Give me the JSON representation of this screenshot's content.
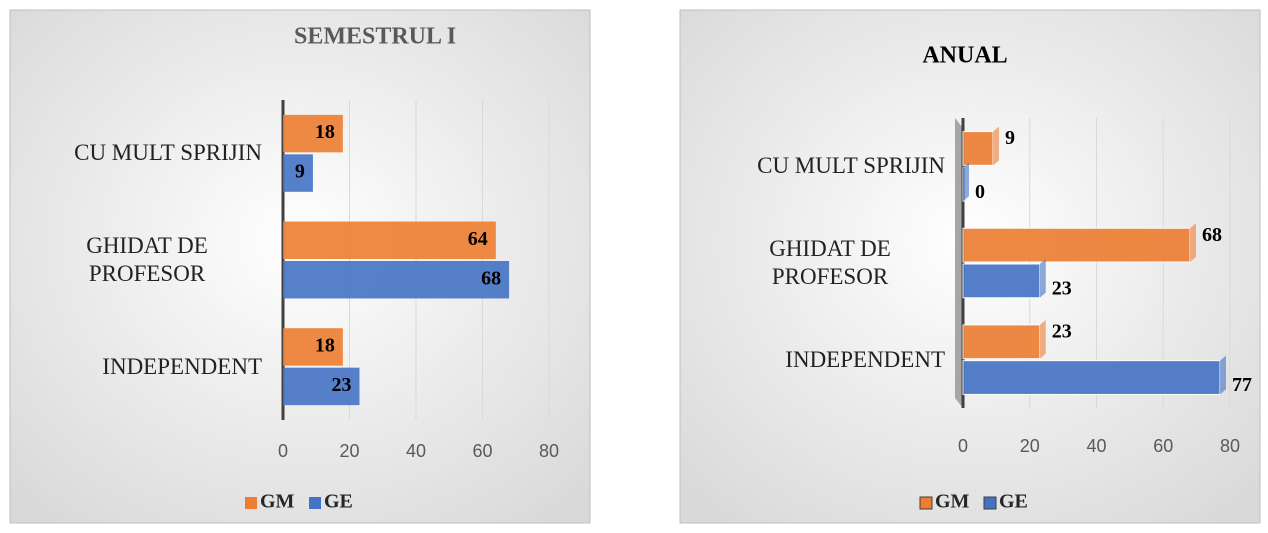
{
  "chart_data": [
    {
      "type": "bar",
      "title": "SEMESTRUL I",
      "categories": [
        "CU MULT SPRIJIN",
        "GHIDAT DE PROFESOR",
        "INDEPENDENT"
      ],
      "series": [
        {
          "name": "GM",
          "color": "#ed7d31",
          "values": [
            18,
            64,
            18
          ]
        },
        {
          "name": "GE",
          "color": "#4472c4",
          "values": [
            9,
            68,
            23
          ]
        }
      ],
      "xlim": [
        0,
        80
      ],
      "xticks": [
        0,
        20,
        40,
        60,
        80
      ],
      "grid": true,
      "legend": "bottom"
    },
    {
      "type": "bar",
      "title": "ANUAL",
      "categories": [
        "CU MULT SPRIJIN",
        "GHIDAT DE PROFESOR",
        "INDEPENDENT"
      ],
      "series": [
        {
          "name": "GM",
          "color": "#ed7d31",
          "values": [
            9,
            68,
            23
          ]
        },
        {
          "name": "GE",
          "color": "#4472c4",
          "values": [
            0,
            23,
            77
          ]
        }
      ],
      "xlim": [
        0,
        80
      ],
      "xticks": [
        0,
        20,
        40,
        60,
        80
      ],
      "grid": true,
      "legend": "bottom"
    }
  ]
}
